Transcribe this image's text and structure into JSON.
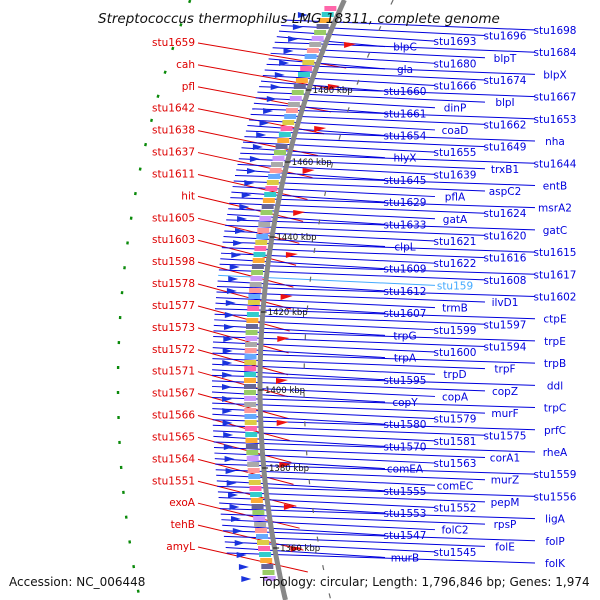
{
  "title": "Streptococcus thermophilus LMG 18311, complete genome",
  "footer": {
    "accession": "Accession: NC_006448",
    "summary": "Topology: circular; Length: 1,796,846 bp; Genes: 1,974"
  },
  "colors": {
    "left_genes": "#dd0000",
    "right_genes": "#0000dd",
    "highlight": "#44aaff",
    "backbone": "#888888"
  },
  "ticks": [
    "1480 kbp",
    "1460 kbp",
    "1440 kbp",
    "1420 kbp",
    "1400 kbp",
    "1380 kbp",
    "1360 kbp"
  ],
  "left_labels": [
    "stu1659",
    "cah",
    "pfl",
    "stu1642",
    "stu1638",
    "stu1637",
    "stu1611",
    "hit",
    "stu1605",
    "stu1603",
    "stu1598",
    "stu1578",
    "stu1577",
    "stu1573",
    "stu1572",
    "stu1571",
    "stu1567",
    "stu1566",
    "stu1565",
    "stu1564",
    "stu1551",
    "exoA",
    "tehB",
    "amyL"
  ],
  "right_labels": [
    "stu1698",
    "stu1696",
    "stu1693",
    "blpC",
    "stu1684",
    "blpT",
    "stu1680",
    "gla",
    "blpX",
    "stu1674",
    "stu1666",
    "stu1660",
    "stu1667",
    "blpI",
    "dinP",
    "stu1661",
    "stu1653",
    "stu1662",
    "coaD",
    "stu1654",
    "nha",
    "stu1649",
    "stu1655",
    "hlyX",
    "stu1644",
    "trxB1",
    "stu1639",
    "stu1645",
    "entB",
    "aspC2",
    "pflA",
    "stu1629",
    "msrA2",
    "stu1624",
    "gatA",
    "stu1633",
    "gatC",
    "stu1620",
    "stu1621",
    "clpL",
    "stu1615",
    "stu1616",
    "stu1622",
    "stu1609",
    "stu1617",
    "stu1608",
    "stu159",
    "stu1612",
    "stu1602",
    "ilvD1",
    "trmB",
    "stu1607",
    "ctpE",
    "stu1597",
    "stu1599",
    "trpG",
    "trpE",
    "stu1594",
    "stu1600",
    "trpA",
    "trpB",
    "trpF",
    "trpD",
    "stu1595",
    "ddl",
    "copZ",
    "copA",
    "copY",
    "trpC",
    "murF",
    "stu1579",
    "stu1580",
    "prfC",
    "stu1575",
    "stu1581",
    "stu1570",
    "rheA",
    "corA1",
    "stu1563",
    "comEA",
    "stu1559",
    "murZ",
    "comEC",
    "stu1555",
    "stu1556",
    "pepM",
    "stu1552",
    "stu1553",
    "ligA",
    "rpsP",
    "folC2",
    "stu1547",
    "folP",
    "folE",
    "stu1545",
    "murB",
    "folK"
  ]
}
